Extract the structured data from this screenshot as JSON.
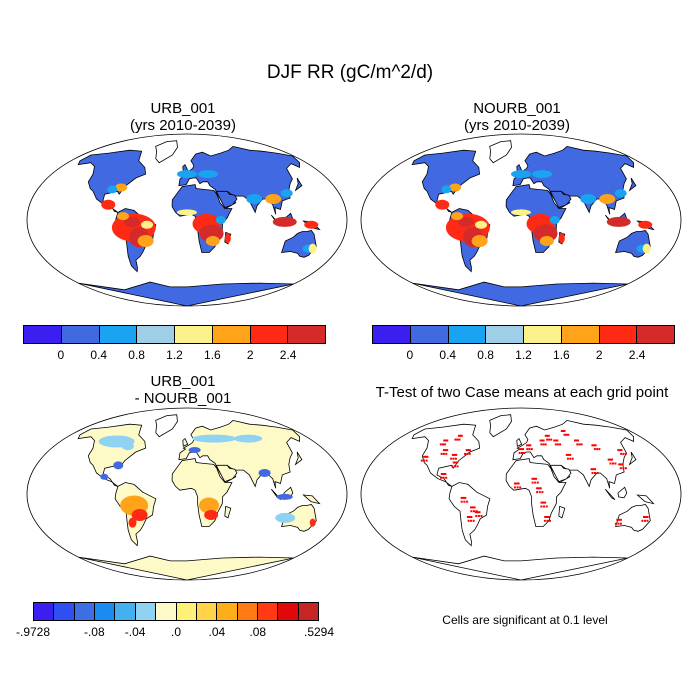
{
  "title": "DJF RR (gC/m^2/d)",
  "panels": {
    "top_left": {
      "title_line1": "URB_001",
      "title_line2": "(yrs 2010-2039)"
    },
    "top_right": {
      "title_line1": "NOURB_001",
      "title_line2": "(yrs 2010-2039)"
    },
    "bottom_left": {
      "title_line1": "URB_001",
      "title_line2": "- NOURB_001"
    },
    "bottom_right": {
      "title": "T-Test of two Case means at each grid point",
      "note": "Cells are significant at 0.1 level"
    }
  },
  "colorbar_top": {
    "colors": [
      "#3b1ef0",
      "#4169e1",
      "#1aa3f0",
      "#9fcfe6",
      "#fbf28c",
      "#ffa31a",
      "#ff2a14",
      "#d42a2a"
    ],
    "labels": [
      "0",
      "0.4",
      "0.8",
      "1.2",
      "1.6",
      "2",
      "2.4"
    ]
  },
  "colorbar_diff": {
    "colors": [
      "#3b1ef0",
      "#2e50f0",
      "#3b6fe6",
      "#1a8cf0",
      "#45b0f0",
      "#8fd2f2",
      "#fdfac8",
      "#fff07a",
      "#ffd34a",
      "#ffae1a",
      "#ff7a14",
      "#ff3a14",
      "#e00808",
      "#c62525"
    ],
    "labels": [
      ".9728",
      ".08",
      ".04",
      ".0",
      ".04",
      ".08",
      ".5294"
    ],
    "label_signs": [
      "-",
      "-",
      "-",
      "",
      "",
      "",
      ""
    ]
  },
  "map_colors": {
    "ocean": "#ffffff",
    "coast": "#000000",
    "low": "#4169e1",
    "mid": "#1aa3f0",
    "high": "#ff2a14",
    "peak": "#d42a2a",
    "yellow": "#fbf28c",
    "orange": "#ffa31a",
    "diff_neutral": "#fdfac8",
    "diff_light": "#8fd2f2",
    "signif": "#ff0000"
  }
}
